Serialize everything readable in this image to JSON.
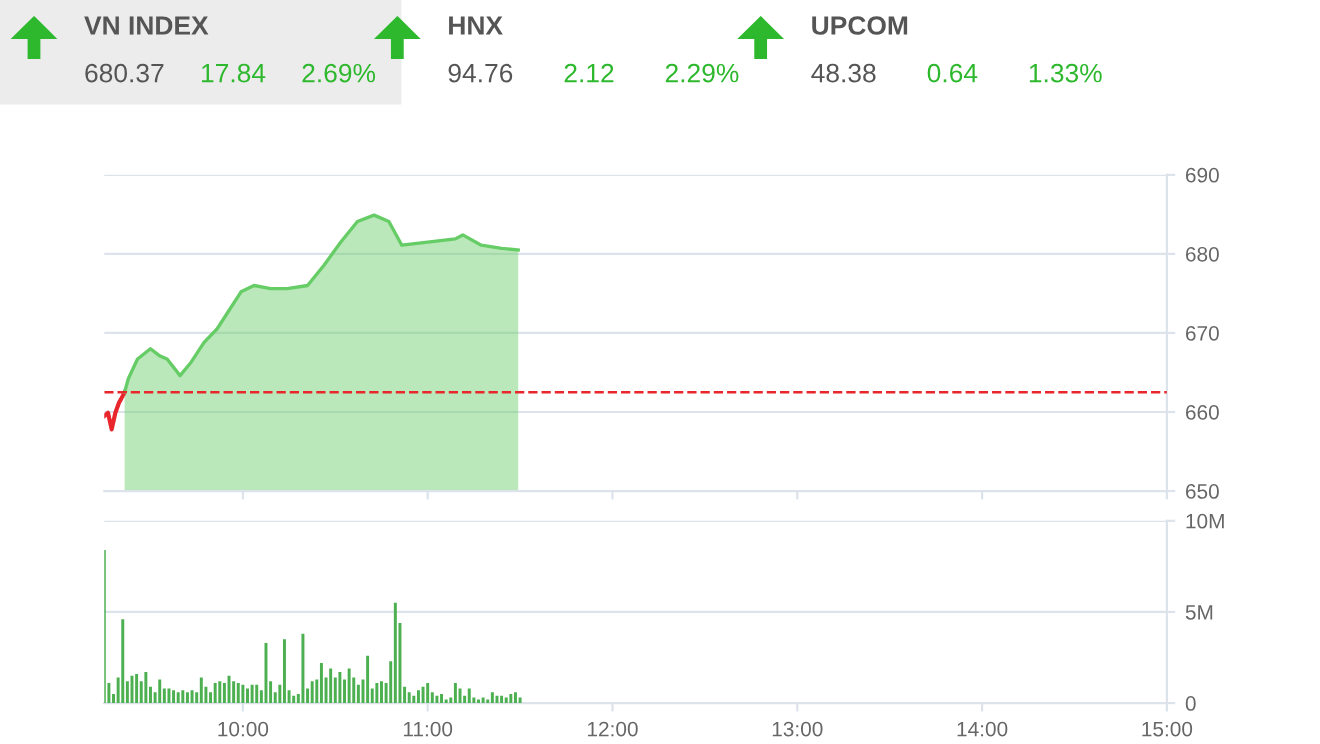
{
  "chart_data": [
    {
      "type": "other",
      "annotations": [
        "VN INDEX",
        "680.37",
        "17.84",
        "2.69%",
        "HNX",
        "94.76",
        "2.12",
        "2.29%",
        "UPCOM",
        "48.38",
        "0.64",
        "1.33%"
      ]
    },
    {
      "type": "area",
      "xlim": [
        9.25,
        15
      ],
      "xticks": [
        {
          "value": 10,
          "label": null
        },
        {
          "value": 11,
          "label": null
        },
        {
          "value": 12,
          "label": null
        },
        {
          "value": 13,
          "label": null
        },
        {
          "value": 14,
          "label": null
        },
        {
          "value": 15,
          "label": null
        }
      ],
      "ylim": [
        650,
        690
      ],
      "yticks": [
        650,
        660,
        670,
        680,
        690
      ],
      "grid": "y",
      "tick_labels": "y",
      "ref_lines": [
        {
          "axis": "y",
          "value": 662.5,
          "color": "#e8262b",
          "line_style": "dashed"
        }
      ],
      "series": [
        {
          "type": "line",
          "color": "#e8262b",
          "x": [
            9.25,
            9.27,
            9.29,
            9.31,
            9.33,
            9.34,
            9.36
          ],
          "values": [
            659.5,
            659.9,
            657.8,
            659.9,
            661.2,
            661.6,
            662.5
          ]
        },
        {
          "type": "area",
          "color": "#66cc66",
          "x": [
            9.36,
            9.38,
            9.43,
            9.5,
            9.55,
            9.59,
            9.66,
            9.72,
            9.79,
            9.86,
            9.99,
            10.06,
            10.15,
            10.24,
            10.35,
            10.44,
            10.53,
            10.62,
            10.71,
            10.79,
            10.86,
            11.0,
            11.15,
            11.19,
            11.29,
            11.4,
            11.49
          ],
          "values": [
            662.5,
            664.2,
            666.7,
            668.0,
            667.1,
            666.7,
            664.6,
            666.3,
            668.8,
            670.5,
            675.2,
            676.0,
            675.6,
            675.6,
            676.0,
            678.6,
            681.5,
            684.1,
            684.9,
            684.1,
            681.1,
            681.5,
            681.9,
            682.4,
            681.1,
            680.7,
            680.5
          ]
        }
      ]
    },
    {
      "type": "bar",
      "color": "#4caf50",
      "xlim": [
        9.25,
        15
      ],
      "xticks": [
        {
          "value": 10,
          "label": "10:00"
        },
        {
          "value": 11,
          "label": "11:00"
        },
        {
          "value": 12,
          "label": "12:00"
        },
        {
          "value": 13,
          "label": "13:00"
        },
        {
          "value": 14,
          "label": "14:00"
        },
        {
          "value": 15,
          "label": "15:00"
        }
      ],
      "ylim": [
        0,
        10
      ],
      "yticks": [
        {
          "value": 0,
          "label": "0"
        },
        {
          "value": 5,
          "label": "5M"
        },
        {
          "value": 10,
          "label": "10M"
        }
      ],
      "grid": "y",
      "x": [
        9.25,
        9.275,
        9.3,
        9.325,
        9.35,
        9.375,
        9.4,
        9.425,
        9.45,
        9.475,
        9.5,
        9.525,
        9.55,
        9.575,
        9.6,
        9.625,
        9.65,
        9.675,
        9.7,
        9.725,
        9.75,
        9.775,
        9.8,
        9.825,
        9.85,
        9.875,
        9.9,
        9.925,
        9.95,
        9.975,
        10,
        10.025,
        10.05,
        10.075,
        10.1,
        10.125,
        10.15,
        10.175,
        10.2,
        10.225,
        10.25,
        10.275,
        10.3,
        10.325,
        10.35,
        10.375,
        10.4,
        10.425,
        10.45,
        10.475,
        10.5,
        10.525,
        10.55,
        10.575,
        10.6,
        10.625,
        10.65,
        10.675,
        10.7,
        10.725,
        10.75,
        10.775,
        10.8,
        10.825,
        10.85,
        10.875,
        10.9,
        10.925,
        10.95,
        10.975,
        11,
        11.025,
        11.05,
        11.075,
        11.1,
        11.125,
        11.15,
        11.175,
        11.2,
        11.225,
        11.25,
        11.275,
        11.3,
        11.325,
        11.35,
        11.375,
        11.4,
        11.425,
        11.45,
        11.475,
        11.5
      ],
      "values": [
        8.4,
        1.1,
        0.5,
        1.4,
        4.6,
        1.2,
        1.5,
        1.6,
        1.2,
        1.7,
        0.9,
        0.6,
        1.3,
        0.8,
        0.8,
        0.7,
        0.6,
        0.7,
        0.6,
        0.7,
        0.6,
        1.4,
        0.9,
        0.6,
        1.1,
        1.2,
        1.1,
        1.5,
        1.2,
        1.1,
        1.0,
        0.8,
        1.0,
        1.0,
        0.7,
        3.3,
        1.2,
        0.6,
        1.0,
        3.5,
        0.7,
        0.4,
        0.5,
        3.8,
        0.8,
        1.2,
        1.3,
        2.2,
        1.4,
        1.9,
        1.4,
        1.7,
        1.3,
        1.9,
        1.4,
        1.0,
        1.3,
        2.6,
        0.8,
        1.1,
        1.2,
        1.1,
        2.3,
        5.5,
        4.4,
        0.9,
        0.6,
        0.4,
        0.7,
        0.9,
        1.1,
        0.6,
        0.4,
        0.5,
        0.2,
        0.3,
        1.1,
        0.8,
        0.4,
        0.8,
        0.3,
        0.2,
        0.3,
        0.2,
        0.6,
        0.4,
        0.4,
        0.3,
        0.5,
        0.6,
        0.3
      ]
    }
  ]
}
